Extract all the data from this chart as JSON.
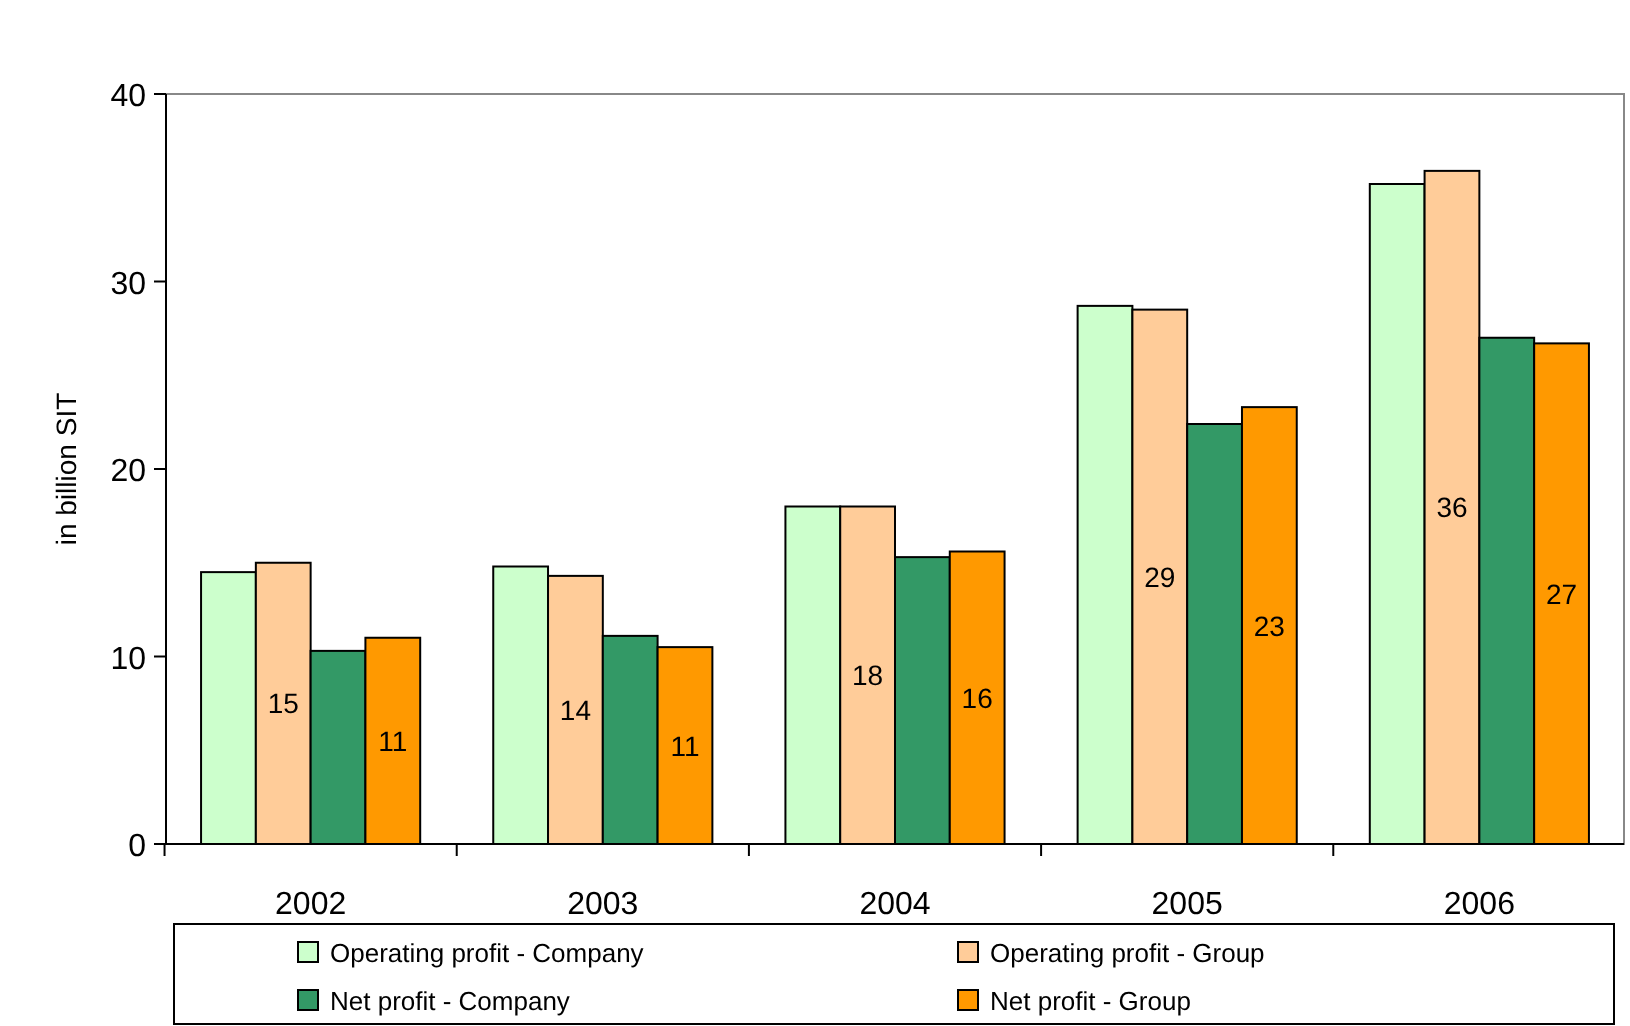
{
  "chart_data": {
    "type": "bar",
    "ylabel": "in billion SIT",
    "categories": [
      "2002",
      "2003",
      "2004",
      "2005",
      "2006"
    ],
    "ylim": [
      0,
      40
    ],
    "yticks": [
      0,
      10,
      20,
      30,
      40
    ],
    "grid": false,
    "legend": "bottom",
    "series": [
      {
        "name": "Operating profit - Company",
        "color": "#ccffcc",
        "values": [
          14.5,
          14.8,
          18.0,
          28.7,
          35.2
        ]
      },
      {
        "name": "Operating profit - Group",
        "color": "#ffcc99",
        "values": [
          15.0,
          14.3,
          18.0,
          28.5,
          35.9
        ],
        "value_labels": [
          "15",
          "14",
          "18",
          "29",
          "36"
        ]
      },
      {
        "name": "Net profit - Company",
        "color": "#339966",
        "values": [
          10.3,
          11.1,
          15.3,
          22.4,
          27.0
        ]
      },
      {
        "name": "Net profit - Group",
        "color": "#ff9900",
        "values": [
          11.0,
          10.5,
          15.6,
          23.3,
          26.7
        ],
        "value_labels": [
          "11",
          "11",
          "16",
          "23",
          "27"
        ]
      }
    ]
  }
}
